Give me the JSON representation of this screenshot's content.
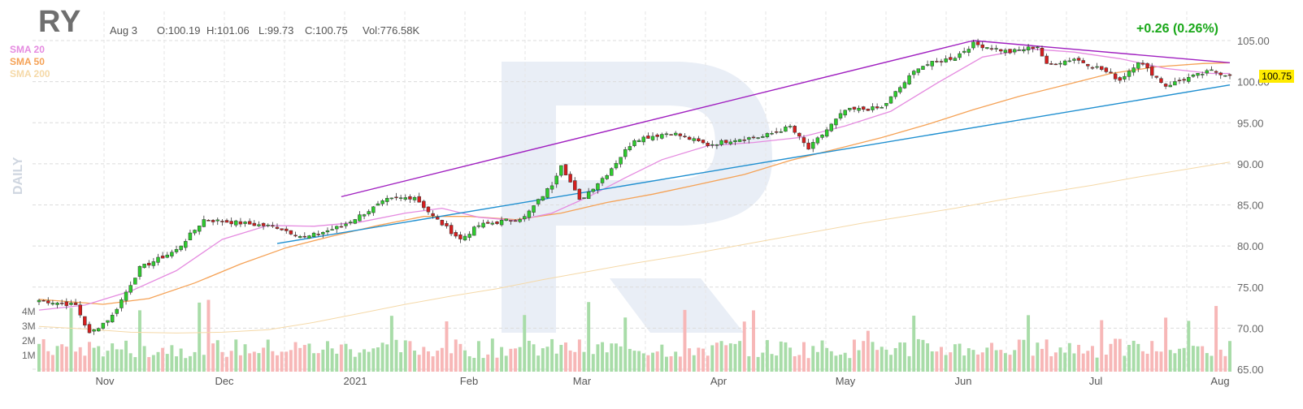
{
  "header": {
    "ticker": "RY",
    "date": "Aug 3",
    "open": "O:100.19",
    "high": "H:101.06",
    "low": "L:99.73",
    "close": "C:100.75",
    "volume": "Vol:776.58K",
    "change": "+0.26 (0.26%)",
    "change_color": "#1aa81a"
  },
  "indicators": {
    "sma20_label": "SMA 20",
    "sma20_color": "#e58be0",
    "sma50_label": "SMA 50",
    "sma50_color": "#f5a256",
    "sma200_label": "SMA 200",
    "sma200_color": "#f5d9a8"
  },
  "interval_label": "DAILY",
  "last_price_label": "100.75",
  "colors": {
    "up_fill": "#2ecc2e",
    "down_fill": "#d61e1e",
    "vol_up": "#a8dca8",
    "vol_down": "#f7b7b7",
    "upper_trendline": "#a020c0",
    "lower_trendline": "#1f8fd0",
    "grid": "#dcdcdc",
    "watermark": "#e9eef6",
    "price_tag": "#ffeb00"
  },
  "chart_data": {
    "type": "candlestick",
    "x_ticks": [
      "Nov",
      "Dec",
      "2021",
      "Feb",
      "Mar",
      "Apr",
      "May",
      "Jun",
      "Jul",
      "Aug"
    ],
    "y_ticks": [
      "105.00",
      "100.00",
      "95.00",
      "90.00",
      "85.00",
      "80.00",
      "75.00",
      "70.00",
      "65.00"
    ],
    "ylim": [
      65,
      105
    ],
    "volume_ticks": [
      "4M",
      "3M",
      "2M",
      "1M"
    ],
    "grid": true,
    "anchors": [
      {
        "i": 0,
        "v": 73.4
      },
      {
        "i": 8,
        "v": 72.8
      },
      {
        "i": 11,
        "v": 69.3
      },
      {
        "i": 16,
        "v": 71.5
      },
      {
        "i": 22,
        "v": 77.3
      },
      {
        "i": 30,
        "v": 79.5
      },
      {
        "i": 36,
        "v": 83.2
      },
      {
        "i": 44,
        "v": 82.8
      },
      {
        "i": 52,
        "v": 82.3
      },
      {
        "i": 58,
        "v": 81.0
      },
      {
        "i": 66,
        "v": 82.4
      },
      {
        "i": 76,
        "v": 85.6
      },
      {
        "i": 82,
        "v": 86.0
      },
      {
        "i": 86,
        "v": 83.6
      },
      {
        "i": 92,
        "v": 80.8
      },
      {
        "i": 96,
        "v": 82.5
      },
      {
        "i": 106,
        "v": 83.5
      },
      {
        "i": 112,
        "v": 87.5
      },
      {
        "i": 114,
        "v": 90.0
      },
      {
        "i": 118,
        "v": 85.5
      },
      {
        "i": 124,
        "v": 88.8
      },
      {
        "i": 130,
        "v": 93.0
      },
      {
        "i": 138,
        "v": 93.8
      },
      {
        "i": 146,
        "v": 92.3
      },
      {
        "i": 152,
        "v": 93.0
      },
      {
        "i": 158,
        "v": 93.3
      },
      {
        "i": 164,
        "v": 94.5
      },
      {
        "i": 168,
        "v": 91.8
      },
      {
        "i": 176,
        "v": 96.5
      },
      {
        "i": 184,
        "v": 96.8
      },
      {
        "i": 192,
        "v": 101.8
      },
      {
        "i": 200,
        "v": 103.0
      },
      {
        "i": 204,
        "v": 104.6
      },
      {
        "i": 212,
        "v": 103.6
      },
      {
        "i": 218,
        "v": 104.3
      },
      {
        "i": 220,
        "v": 102.0
      },
      {
        "i": 226,
        "v": 102.8
      },
      {
        "i": 232,
        "v": 101.5
      },
      {
        "i": 236,
        "v": 100.2
      },
      {
        "i": 240,
        "v": 102.5
      },
      {
        "i": 246,
        "v": 99.5
      },
      {
        "i": 250,
        "v": 100.3
      },
      {
        "i": 256,
        "v": 101.3
      },
      {
        "i": 260,
        "v": 100.75
      }
    ],
    "sma20": [
      [
        0,
        72.2
      ],
      [
        10,
        72.8
      ],
      [
        20,
        74.5
      ],
      [
        30,
        77.0
      ],
      [
        40,
        80.8
      ],
      [
        50,
        82.5
      ],
      [
        60,
        82.4
      ],
      [
        70,
        82.9
      ],
      [
        80,
        84.0
      ],
      [
        88,
        84.6
      ],
      [
        96,
        83.5
      ],
      [
        104,
        83.1
      ],
      [
        112,
        84.0
      ],
      [
        120,
        86.0
      ],
      [
        128,
        88.3
      ],
      [
        136,
        90.5
      ],
      [
        146,
        92.2
      ],
      [
        156,
        92.6
      ],
      [
        166,
        93.2
      ],
      [
        176,
        94.6
      ],
      [
        186,
        96.4
      ],
      [
        196,
        99.8
      ],
      [
        206,
        103.0
      ],
      [
        216,
        104.0
      ],
      [
        226,
        103.6
      ],
      [
        236,
        102.8
      ],
      [
        246,
        101.6
      ],
      [
        256,
        101.0
      ],
      [
        260,
        101.0
      ]
    ],
    "sma50": [
      [
        0,
        73.5
      ],
      [
        14,
        72.9
      ],
      [
        24,
        73.6
      ],
      [
        34,
        75.5
      ],
      [
        44,
        77.8
      ],
      [
        54,
        79.8
      ],
      [
        64,
        81.2
      ],
      [
        74,
        82.5
      ],
      [
        84,
        83.6
      ],
      [
        94,
        83.6
      ],
      [
        104,
        83.2
      ],
      [
        114,
        84.0
      ],
      [
        124,
        85.3
      ],
      [
        134,
        86.3
      ],
      [
        144,
        87.5
      ],
      [
        154,
        88.7
      ],
      [
        164,
        90.4
      ],
      [
        174,
        91.8
      ],
      [
        184,
        93.2
      ],
      [
        194,
        94.8
      ],
      [
        204,
        96.6
      ],
      [
        214,
        98.2
      ],
      [
        224,
        99.6
      ],
      [
        234,
        101.0
      ],
      [
        244,
        101.8
      ],
      [
        254,
        102.2
      ],
      [
        260,
        102.3
      ]
    ],
    "sma200": [
      [
        0,
        70.2
      ],
      [
        10,
        69.9
      ],
      [
        20,
        69.5
      ],
      [
        30,
        69.4
      ],
      [
        40,
        69.5
      ],
      [
        50,
        69.8
      ],
      [
        60,
        70.7
      ],
      [
        70,
        71.8
      ],
      [
        80,
        72.9
      ],
      [
        90,
        73.9
      ],
      [
        100,
        74.8
      ],
      [
        110,
        75.9
      ],
      [
        120,
        76.9
      ],
      [
        130,
        77.9
      ],
      [
        140,
        78.8
      ],
      [
        150,
        79.8
      ],
      [
        160,
        80.8
      ],
      [
        170,
        81.8
      ],
      [
        180,
        82.8
      ],
      [
        190,
        83.7
      ],
      [
        200,
        84.6
      ],
      [
        210,
        85.6
      ],
      [
        220,
        86.5
      ],
      [
        230,
        87.4
      ],
      [
        240,
        88.4
      ],
      [
        250,
        89.3
      ],
      [
        260,
        90.2
      ]
    ],
    "trendlines": [
      {
        "name": "upper",
        "points": [
          [
            66,
            86.0
          ],
          [
            204,
            105.0
          ]
        ]
      },
      {
        "name": "upper",
        "points": [
          [
            204,
            105.0
          ],
          [
            260,
            102.3
          ]
        ]
      },
      {
        "name": "lower",
        "points": [
          [
            52,
            80.3
          ],
          [
            260,
            99.6
          ]
        ]
      }
    ]
  }
}
